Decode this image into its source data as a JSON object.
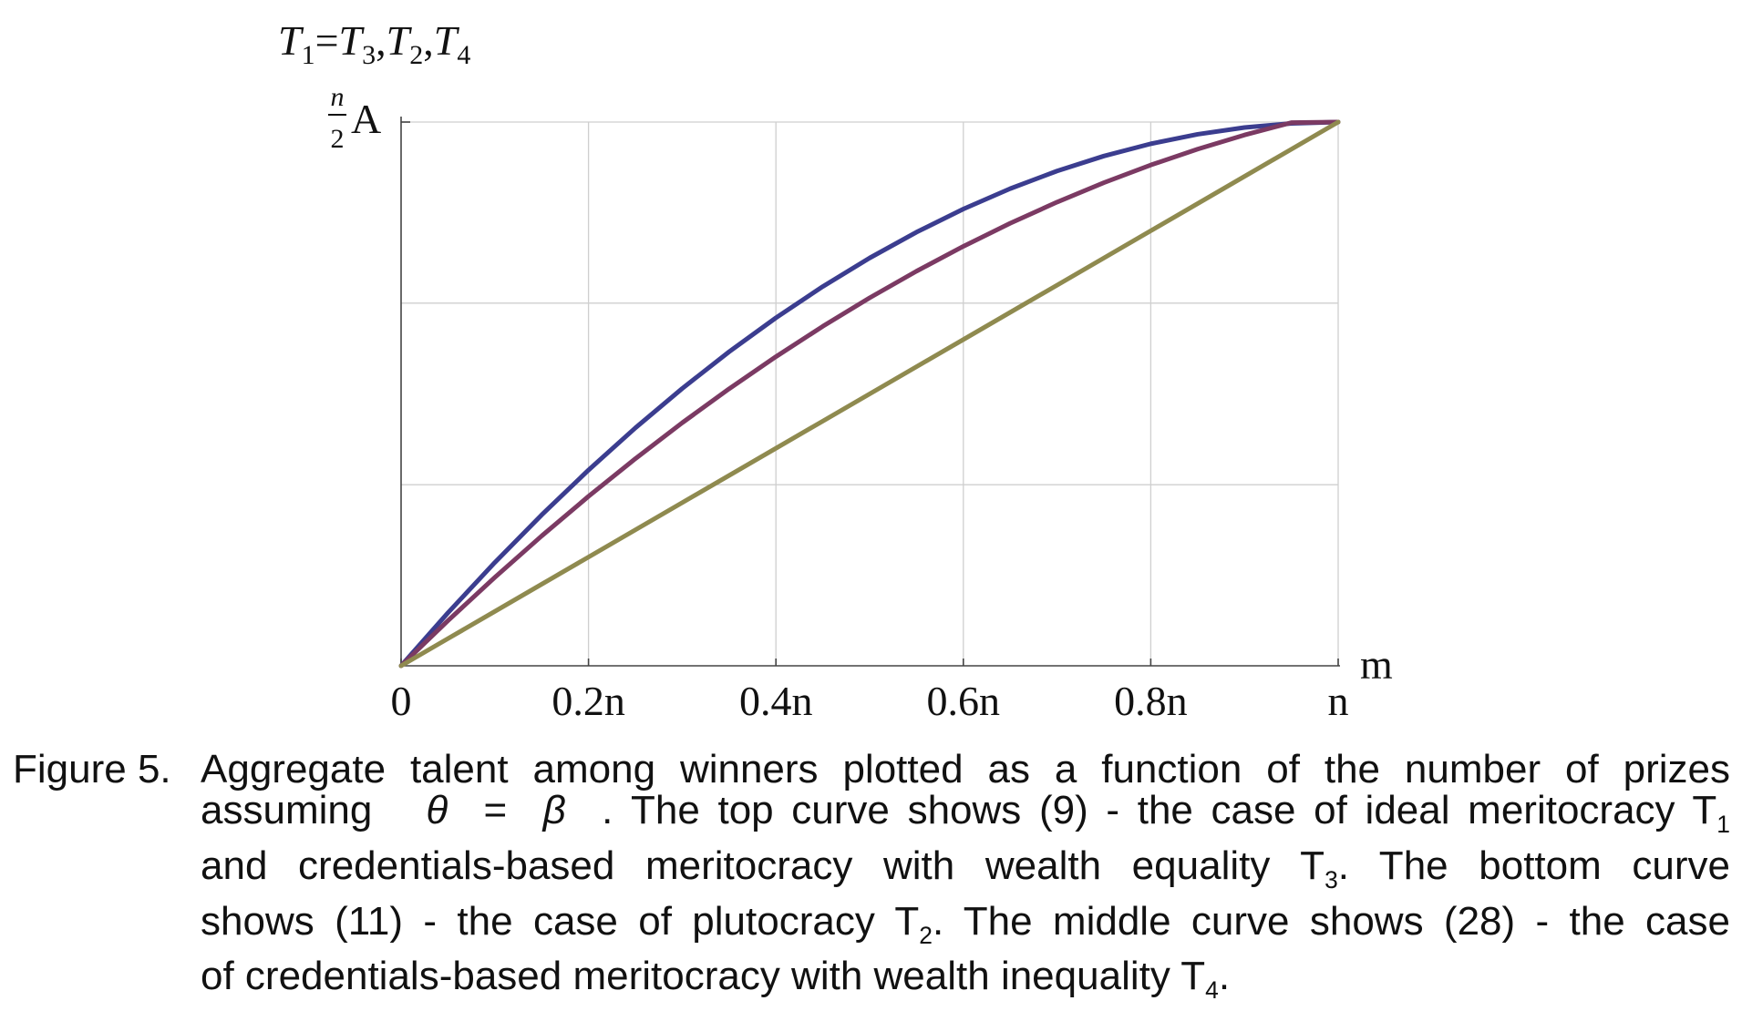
{
  "chart_data": {
    "type": "line",
    "title": "T1=T3,T2,T4",
    "title_parts": {
      "t1": "T",
      "s1": "1",
      "eq": "=",
      "t2": "T",
      "s2": "3",
      "c1": ",",
      "t3": "T",
      "s3": "2",
      "c2": ",",
      "t4": "T",
      "s4": "4"
    },
    "ylabel": "n/2 A",
    "ylabel_parts": {
      "num": "n",
      "den": "2",
      "sym": "A"
    },
    "xlabel": "m",
    "x_ticks": [
      {
        "value": 0,
        "label": "0"
      },
      {
        "value": 0.2,
        "label": "0.2n"
      },
      {
        "value": 0.4,
        "label": "0.4n"
      },
      {
        "value": 0.6,
        "label": "0.6n"
      },
      {
        "value": 0.8,
        "label": "0.8n"
      },
      {
        "value": 1.0,
        "label": "n"
      }
    ],
    "y_gridlines": [
      0.333,
      0.667,
      1.0
    ],
    "xlim": [
      0,
      1
    ],
    "ylim": [
      0,
      1
    ],
    "grid": true,
    "x": [
      0,
      0.05,
      0.1,
      0.15,
      0.2,
      0.25,
      0.3,
      0.35,
      0.4,
      0.45,
      0.5,
      0.55,
      0.6,
      0.65,
      0.7,
      0.75,
      0.8,
      0.85,
      0.9,
      0.95,
      1.0
    ],
    "series": [
      {
        "color": "#3b3d8f",
        "values": [
          0,
          0.0975,
          0.19,
          0.2775,
          0.36,
          0.4375,
          0.51,
          0.5775,
          0.64,
          0.6975,
          0.75,
          0.7975,
          0.84,
          0.8775,
          0.91,
          0.9375,
          0.96,
          0.9775,
          0.99,
          0.9975,
          1.0
        ]
      },
      {
        "color": "#7b3a63",
        "values": [
          0,
          0.083,
          0.1626,
          0.2388,
          0.3116,
          0.3809,
          0.4469,
          0.5094,
          0.5685,
          0.6243,
          0.6767,
          0.7257,
          0.7714,
          0.8138,
          0.8528,
          0.8885,
          0.921,
          0.9502,
          0.9762,
          0.9989,
          1.0
        ]
      },
      {
        "color": "#8f8a4f",
        "values": [
          0,
          0.05,
          0.1,
          0.15,
          0.2,
          0.25,
          0.3,
          0.35,
          0.4,
          0.45,
          0.5,
          0.55,
          0.6,
          0.65,
          0.7,
          0.75,
          0.8,
          0.85,
          0.9,
          0.95,
          1.0
        ]
      }
    ]
  },
  "caption": {
    "lead": "Figure 5.",
    "line1": "Aggregate talent among winners plotted as a function of the number of prizes",
    "line2a": "assuming",
    "theta": "θ",
    "eq": "=",
    "beta": "β",
    "line2b": ". The top curve shows (9) - the case of ideal meritocracy T",
    "line2sub": "1",
    "line3a": "and credentials-based meritocracy with wealth equality T",
    "line3sub": "3",
    "line3b": ". The bottom curve",
    "line4a": "shows (11) - the case of plutocracy T",
    "line4sub": "2",
    "line4b": ". The middle curve shows (28) - the case",
    "line5a": "of credentials-based meritocracy with wealth inequality T",
    "line5sub": "4",
    "line5b": "."
  }
}
